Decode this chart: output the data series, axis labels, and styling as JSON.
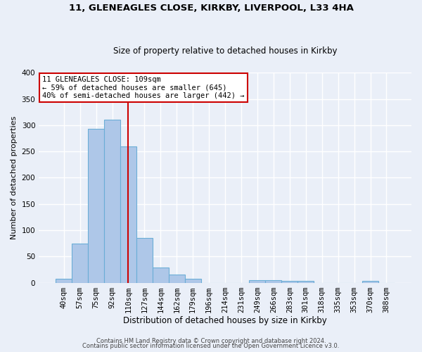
{
  "title1": "11, GLENEAGLES CLOSE, KIRKBY, LIVERPOOL, L33 4HA",
  "title2": "Size of property relative to detached houses in Kirkby",
  "xlabel": "Distribution of detached houses by size in Kirkby",
  "ylabel": "Number of detached properties",
  "bin_labels": [
    "40sqm",
    "57sqm",
    "75sqm",
    "92sqm",
    "110sqm",
    "127sqm",
    "144sqm",
    "162sqm",
    "179sqm",
    "196sqm",
    "214sqm",
    "231sqm",
    "249sqm",
    "266sqm",
    "283sqm",
    "301sqm",
    "318sqm",
    "335sqm",
    "353sqm",
    "370sqm",
    "388sqm"
  ],
  "bar_heights": [
    8,
    75,
    293,
    310,
    260,
    85,
    29,
    15,
    8,
    0,
    0,
    0,
    5,
    5,
    3,
    3,
    0,
    0,
    0,
    3,
    0
  ],
  "bar_color": "#aec7e8",
  "bar_edgecolor": "#6baed6",
  "property_line_idx": 4,
  "annotation_line1": "11 GLENEAGLES CLOSE: 109sqm",
  "annotation_line2": "← 59% of detached houses are smaller (645)",
  "annotation_line3": "40% of semi-detached houses are larger (442) →",
  "annotation_box_color": "white",
  "annotation_box_edgecolor": "#cc0000",
  "vline_color": "#cc0000",
  "ylim": [
    0,
    400
  ],
  "yticks": [
    0,
    50,
    100,
    150,
    200,
    250,
    300,
    350,
    400
  ],
  "footer1": "Contains HM Land Registry data © Crown copyright and database right 2024.",
  "footer2": "Contains public sector information licensed under the Open Government Licence v3.0.",
  "bg_color": "#eaeff8",
  "grid_color": "white",
  "title1_fontsize": 9.5,
  "title2_fontsize": 8.5,
  "ylabel_fontsize": 8,
  "xlabel_fontsize": 8.5,
  "tick_fontsize": 7.5,
  "annot_fontsize": 7.5,
  "footer_fontsize": 6.0
}
